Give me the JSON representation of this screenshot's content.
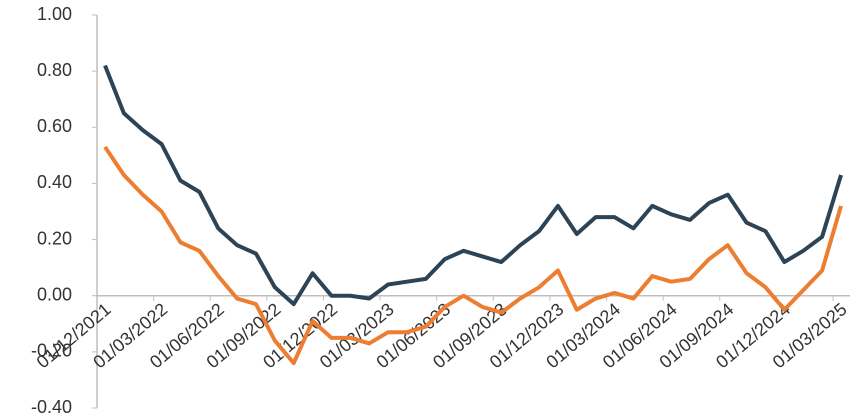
{
  "chart_data": {
    "type": "line",
    "categories": [
      "01/12/2021",
      null,
      null,
      "01/03/2022",
      null,
      null,
      "01/06/2022",
      null,
      null,
      "01/09/2022",
      null,
      null,
      "01/12/2022",
      null,
      null,
      "01/03/2023",
      null,
      null,
      "01/06/2023",
      null,
      null,
      "01/09/2023",
      null,
      null,
      "01/12/2023",
      null,
      null,
      "01/03/2024",
      null,
      null,
      "01/06/2024",
      null,
      null,
      "01/09/2024",
      null,
      null,
      "01/12/2024",
      null,
      null,
      "01/03/2025"
    ],
    "series": [
      {
        "color": "#2d4356",
        "values": [
          0.82,
          0.65,
          0.59,
          0.54,
          0.41,
          0.37,
          0.24,
          0.18,
          0.15,
          0.03,
          -0.03,
          0.08,
          0.0,
          0.0,
          -0.01,
          0.04,
          0.05,
          0.06,
          0.13,
          0.16,
          0.14,
          0.12,
          0.18,
          0.23,
          0.32,
          0.22,
          0.28,
          0.28,
          0.24,
          0.32,
          0.29,
          0.27,
          0.33,
          0.36,
          0.26,
          0.23,
          0.12,
          0.16,
          0.21,
          0.43
        ]
      },
      {
        "color": "#ed7d31",
        "values": [
          0.53,
          0.43,
          0.36,
          0.3,
          0.19,
          0.16,
          0.07,
          -0.01,
          -0.03,
          -0.16,
          -0.24,
          -0.09,
          -0.15,
          -0.15,
          -0.17,
          -0.13,
          -0.13,
          -0.11,
          -0.04,
          0.0,
          -0.04,
          -0.06,
          -0.01,
          0.03,
          0.09,
          -0.05,
          -0.01,
          0.01,
          -0.01,
          0.07,
          0.05,
          0.06,
          0.13,
          0.18,
          0.08,
          0.03,
          -0.05,
          0.02,
          0.09,
          0.32
        ]
      }
    ],
    "ylim": [
      -0.4,
      1.0
    ],
    "yticks": [
      {
        "value": -0.4,
        "label": "-0.40"
      },
      {
        "value": -0.2,
        "label": "-0.20"
      },
      {
        "value": 0,
        "label": "0.00"
      },
      {
        "value": 0.2,
        "label": "0.20"
      },
      {
        "value": 0.4,
        "label": "0.40"
      },
      {
        "value": 0.6,
        "label": "0.60"
      },
      {
        "value": 0.8,
        "label": "0.80"
      },
      {
        "value": 1.0,
        "label": "1.00"
      }
    ],
    "grid": false
  }
}
